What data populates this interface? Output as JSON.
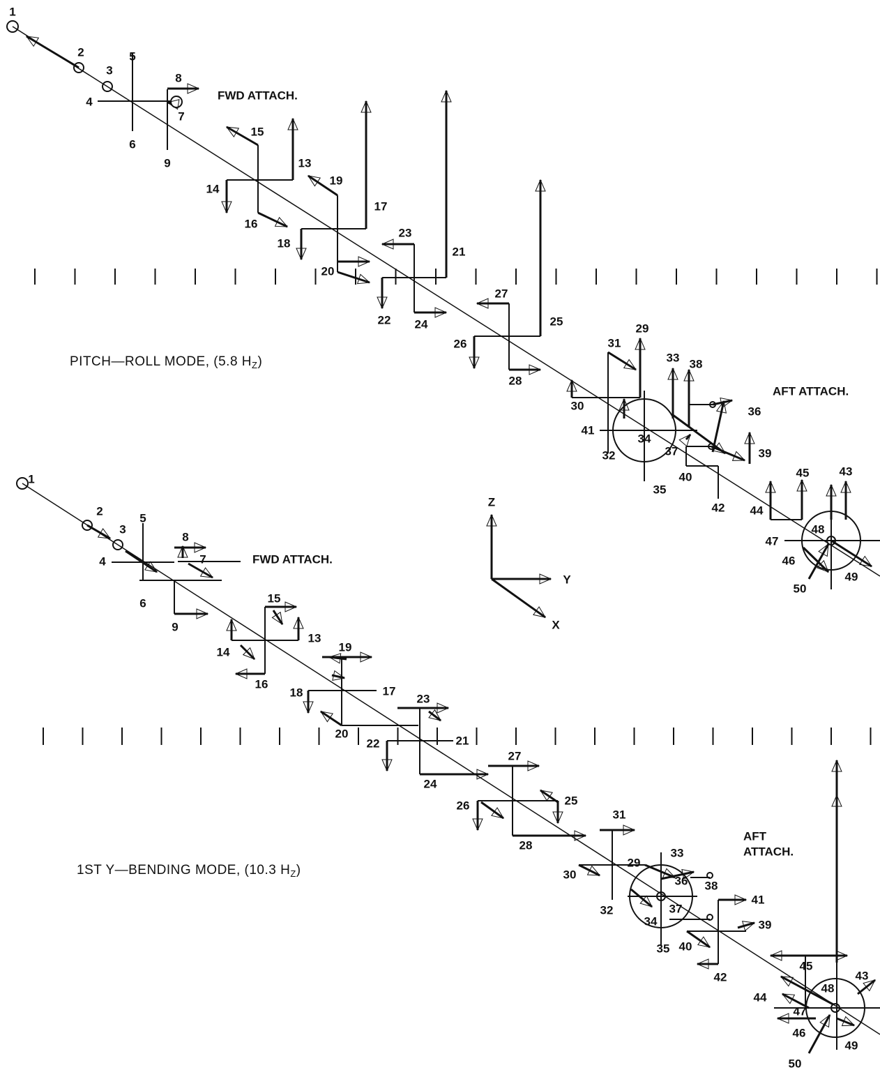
{
  "top_mode": {
    "title": {
      "prefix": "PITCH—ROLL MODE, (5.8 H",
      "subscript": "Z",
      "suffix": ")"
    },
    "fwd_attach": "FWD ATTACH.",
    "aft_attach": "AFT ATTACH.",
    "labels": [
      "1",
      "2",
      "3",
      "4",
      "5",
      "6",
      "7",
      "8",
      "9",
      "13",
      "14",
      "15",
      "16",
      "17",
      "18",
      "19",
      "20",
      "21",
      "22",
      "23",
      "24",
      "25",
      "26",
      "27",
      "28",
      "29",
      "30",
      "31",
      "32",
      "33",
      "34",
      "35",
      "36",
      "37",
      "38",
      "39",
      "40",
      "41",
      "42",
      "43",
      "44",
      "45",
      "46",
      "47",
      "48",
      "49",
      "50"
    ]
  },
  "bottom_mode": {
    "title": {
      "prefix": "1ST Y—BENDING MODE, (10.3 H",
      "subscript": "Z",
      "suffix": ")"
    },
    "fwd_attach": "FWD ATTACH.",
    "aft_attach": [
      "AFT",
      "ATTACH."
    ],
    "labels": [
      "1",
      "2",
      "3",
      "4",
      "5",
      "6",
      "7",
      "8",
      "9",
      "13",
      "14",
      "15",
      "16",
      "17",
      "18",
      "19",
      "20",
      "21",
      "22",
      "23",
      "24",
      "25",
      "26",
      "27",
      "28",
      "29",
      "30",
      "31",
      "32",
      "33",
      "34",
      "35",
      "36",
      "37",
      "38",
      "39",
      "40",
      "41",
      "42",
      "43",
      "44",
      "45",
      "46",
      "47",
      "48",
      "49",
      "50"
    ]
  },
  "axes": {
    "z": "Z",
    "y": "Y",
    "x": "X"
  }
}
